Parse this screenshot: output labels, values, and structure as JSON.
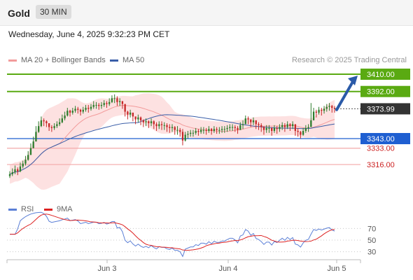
{
  "header": {
    "symbol": "Gold",
    "timeframe": "30 MIN"
  },
  "datetime": "Wednesday, June 4, 2025 9:32:23 PM CET",
  "legend": {
    "ma20": {
      "label": "MA 20 + Bollinger Bands",
      "color": "#f29b9b"
    },
    "ma50": {
      "label": "MA 50",
      "color": "#3a5ea8"
    }
  },
  "credit": "Research © 2025 Trading Central",
  "colors": {
    "up": "#2e7d2e",
    "down": "#c62828",
    "resistance": "#5aaa12",
    "support": "#1f5fd1",
    "support_minor": "#f3a9a9",
    "support_label": "#cc2222",
    "band": "#fde1e1",
    "arrow": "#2a5aa8",
    "current_bg": "#333333"
  },
  "chart_data": [
    {
      "type": "candlestick",
      "title": "Gold",
      "ylim": [
        3280,
        3420
      ],
      "x_tick_labels": [
        "Jun 3",
        "Jun 4",
        "Jun 5"
      ],
      "current_price": "3373.99",
      "levels": [
        {
          "value": 3410.0,
          "label": "3410.00",
          "kind": "resistance"
        },
        {
          "value": 3392.0,
          "label": "3392.00",
          "kind": "resistance"
        },
        {
          "value": 3343.0,
          "label": "3343.00",
          "kind": "pivot"
        },
        {
          "value": 3333.0,
          "label": "3333.00",
          "kind": "support"
        },
        {
          "value": 3316.0,
          "label": "3316.00",
          "kind": "support"
        }
      ],
      "close": [
        3306,
        3308,
        3311,
        3309,
        3314,
        3317,
        3321,
        3326,
        3333,
        3340,
        3350,
        3356,
        3362,
        3361,
        3359,
        3355,
        3354,
        3356,
        3358,
        3360,
        3364,
        3367,
        3372,
        3370,
        3372,
        3374,
        3373,
        3371,
        3373,
        3375,
        3374,
        3376,
        3378,
        3378,
        3377,
        3378,
        3380,
        3379,
        3381,
        3385,
        3385,
        3381,
        3382,
        3379,
        3371,
        3368,
        3370,
        3366,
        3363,
        3365,
        3362,
        3360,
        3361,
        3359,
        3361,
        3358,
        3356,
        3358,
        3357,
        3357,
        3355,
        3354,
        3355,
        3352,
        3352,
        3350,
        3341,
        3347,
        3348,
        3349,
        3349,
        3351,
        3350,
        3352,
        3352,
        3351,
        3353,
        3351,
        3353,
        3352,
        3352,
        3353,
        3353,
        3354,
        3355,
        3355,
        3354,
        3352,
        3357,
        3358,
        3364,
        3363,
        3360,
        3362,
        3358,
        3357,
        3355,
        3352,
        3354,
        3354,
        3351,
        3354,
        3353,
        3355,
        3357,
        3355,
        3358,
        3356,
        3358,
        3351,
        3350,
        3347,
        3351,
        3354,
        3355,
        3362,
        3371,
        3370,
        3373,
        3372,
        3374,
        3376,
        3377,
        3375,
        3374
      ],
      "high": [
        3309,
        3312,
        3315,
        3313,
        3318,
        3320,
        3325,
        3330,
        3338,
        3345,
        3356,
        3361,
        3366,
        3364,
        3362,
        3358,
        3357,
        3359,
        3361,
        3364,
        3368,
        3371,
        3375,
        3373,
        3375,
        3377,
        3376,
        3374,
        3376,
        3378,
        3378,
        3379,
        3382,
        3381,
        3380,
        3381,
        3383,
        3382,
        3385,
        3388,
        3389,
        3387,
        3385,
        3382,
        3375,
        3372,
        3373,
        3369,
        3366,
        3368,
        3366,
        3363,
        3364,
        3362,
        3364,
        3362,
        3360,
        3361,
        3361,
        3360,
        3359,
        3358,
        3358,
        3356,
        3356,
        3354,
        3353,
        3350,
        3351,
        3352,
        3352,
        3354,
        3353,
        3355,
        3355,
        3354,
        3356,
        3354,
        3356,
        3355,
        3355,
        3356,
        3356,
        3357,
        3358,
        3358,
        3357,
        3356,
        3360,
        3362,
        3367,
        3366,
        3363,
        3365,
        3362,
        3360,
        3359,
        3356,
        3357,
        3357,
        3355,
        3357,
        3356,
        3358,
        3360,
        3359,
        3361,
        3359,
        3361,
        3356,
        3354,
        3351,
        3354,
        3357,
        3358,
        3380,
        3375,
        3373,
        3376,
        3375,
        3377,
        3379,
        3380,
        3378,
        3377
      ],
      "low": [
        3302,
        3304,
        3306,
        3305,
        3308,
        3312,
        3315,
        3320,
        3326,
        3333,
        3340,
        3349,
        3355,
        3356,
        3355,
        3351,
        3350,
        3352,
        3354,
        3356,
        3359,
        3362,
        3366,
        3366,
        3368,
        3370,
        3369,
        3367,
        3369,
        3371,
        3370,
        3372,
        3374,
        3374,
        3373,
        3374,
        3376,
        3375,
        3377,
        3380,
        3380,
        3377,
        3377,
        3374,
        3366,
        3363,
        3365,
        3361,
        3358,
        3360,
        3357,
        3355,
        3356,
        3354,
        3356,
        3353,
        3351,
        3353,
        3352,
        3352,
        3350,
        3349,
        3350,
        3347,
        3347,
        3345,
        3336,
        3340,
        3343,
        3345,
        3345,
        3347,
        3346,
        3348,
        3348,
        3347,
        3349,
        3347,
        3349,
        3348,
        3348,
        3349,
        3349,
        3350,
        3351,
        3351,
        3350,
        3348,
        3352,
        3353,
        3358,
        3358,
        3355,
        3357,
        3353,
        3352,
        3350,
        3347,
        3349,
        3349,
        3346,
        3349,
        3348,
        3350,
        3352,
        3350,
        3353,
        3351,
        3353,
        3346,
        3345,
        3343,
        3346,
        3349,
        3350,
        3357,
        3365,
        3365,
        3368,
        3367,
        3369,
        3371,
        3372,
        3370,
        3370
      ]
    },
    {
      "type": "line",
      "title": "RSI",
      "series": [
        {
          "name": "RSI",
          "color": "#5b7fd6"
        },
        {
          "name": "9MA",
          "color": "#dd2222"
        }
      ],
      "y_ticks": [
        70,
        50,
        30
      ],
      "ylim": [
        20,
        80
      ]
    }
  ]
}
